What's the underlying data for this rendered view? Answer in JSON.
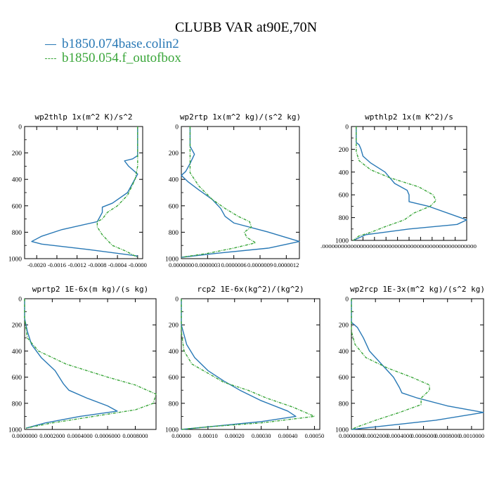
{
  "title": "CLUBB VAR at90E,70N",
  "legend": [
    {
      "label": "b1850.074base.colin2",
      "color": "#2878b5"
    },
    {
      "label": "b1850.054.f_outofbox",
      "color": "#3aa63a"
    }
  ],
  "chart_data": [
    {
      "type": "line",
      "title": "wp2thlp  1x(m^2 K)/s^2",
      "ylim": [
        1000,
        0
      ],
      "y_ticks": [
        "0",
        "200",
        "400",
        "600",
        "800",
        "1000"
      ],
      "xlim": [
        -0.00224,
        0.0001
      ],
      "x_ticks": [
        {
          "v": -0.002,
          "label": "-0.0020"
        },
        {
          "v": -0.0016,
          "label": "-0.0016"
        },
        {
          "v": -0.0012,
          "label": "-0.0012"
        },
        {
          "v": -0.0008,
          "label": "-0.0008"
        },
        {
          "v": -0.0004,
          "label": "-0.0004"
        },
        {
          "v": 0.0,
          "label": "-0.0000"
        }
      ],
      "series": [
        {
          "color": "#2878b5",
          "dashed": false,
          "points": [
            [
              0,
              0
            ],
            [
              0,
              150
            ],
            [
              0,
              220
            ],
            [
              -0.0001,
              245
            ],
            [
              -0.00026,
              260
            ],
            [
              -0.00018,
              300
            ],
            [
              0,
              360
            ],
            [
              -0.0002,
              500
            ],
            [
              -0.0005,
              580
            ],
            [
              -0.0007,
              610
            ],
            [
              -0.0007,
              650
            ],
            [
              -0.0008,
              720
            ],
            [
              -0.0015,
              780
            ],
            [
              -0.0019,
              830
            ],
            [
              -0.0021,
              870
            ],
            [
              -0.0019,
              890
            ],
            [
              -0.001,
              930
            ],
            [
              0,
              980
            ]
          ]
        },
        {
          "color": "#3aa63a",
          "dashed": true,
          "points": [
            [
              0,
              0
            ],
            [
              0,
              150
            ],
            [
              0,
              300
            ],
            [
              -5e-05,
              400
            ],
            [
              -0.0002,
              520
            ],
            [
              -0.0004,
              600
            ],
            [
              -0.0006,
              650
            ],
            [
              -0.0007,
              700
            ],
            [
              -0.0008,
              720
            ],
            [
              -0.0008,
              760
            ],
            [
              -0.0007,
              820
            ],
            [
              -0.0006,
              860
            ],
            [
              -0.0005,
              900
            ],
            [
              -0.00025,
              940
            ],
            [
              0,
              990
            ]
          ]
        }
      ]
    },
    {
      "type": "line",
      "title": "wp2rtp  1x(m^2 kg)/(s^2 kg)",
      "ylim": [
        1000,
        0
      ],
      "y_ticks": [
        "0",
        "200",
        "400",
        "600",
        "800",
        "1000"
      ],
      "xlim": [
        0,
        1.35e-05
      ],
      "x_ticks": [
        {
          "v": 0,
          "label": "0.0000000"
        },
        {
          "v": 3e-06,
          "label": "0.0000003"
        },
        {
          "v": 6e-06,
          "label": "0.0000006"
        },
        {
          "v": 9e-06,
          "label": "0.0000009"
        },
        {
          "v": 1.2e-05,
          "label": "0.0000012"
        }
      ],
      "series": [
        {
          "color": "#2878b5",
          "dashed": false,
          "points": [
            [
              1e-06,
              0
            ],
            [
              1e-06,
              150
            ],
            [
              1.5e-06,
              210
            ],
            [
              1e-06,
              280
            ],
            [
              5e-07,
              340
            ],
            [
              0,
              370
            ],
            [
              8e-07,
              420
            ],
            [
              2e-06,
              480
            ],
            [
              3.5e-06,
              550
            ],
            [
              4.5e-06,
              620
            ],
            [
              5e-06,
              680
            ],
            [
              6e-06,
              730
            ],
            [
              1e-05,
              800
            ],
            [
              1.35e-05,
              870
            ],
            [
              1e-05,
              920
            ],
            [
              4e-06,
              960
            ],
            [
              0,
              990
            ]
          ]
        },
        {
          "color": "#3aa63a",
          "dashed": true,
          "points": [
            [
              1e-06,
              0
            ],
            [
              1e-06,
              200
            ],
            [
              1e-06,
              350
            ],
            [
              2e-06,
              450
            ],
            [
              3.5e-06,
              550
            ],
            [
              5e-06,
              620
            ],
            [
              6.5e-06,
              680
            ],
            [
              7.8e-06,
              720
            ],
            [
              8e-06,
              760
            ],
            [
              7.2e-06,
              800
            ],
            [
              7.5e-06,
              840
            ],
            [
              8.5e-06,
              880
            ],
            [
              6e-06,
              920
            ],
            [
              3e-06,
              960
            ],
            [
              0,
              990
            ]
          ]
        }
      ]
    },
    {
      "type": "line",
      "title": "wpthlp2  1x(m K^2)/s",
      "ylim": [
        1000,
        0
      ],
      "y_ticks": [
        "0",
        "200",
        "400",
        "600",
        "800",
        "1000"
      ],
      "xlim": [
        0,
        1.2
      ],
      "x_tick_strip": ".0000000000000000000000000000000000000000000000000",
      "series": [
        {
          "color": "#2878b5",
          "dashed": false,
          "points": [
            [
              0.05,
              0
            ],
            [
              0.05,
              140
            ],
            [
              0.08,
              160
            ],
            [
              0.1,
              200
            ],
            [
              0.12,
              260
            ],
            [
              0.2,
              320
            ],
            [
              0.35,
              400
            ],
            [
              0.4,
              450
            ],
            [
              0.45,
              500
            ],
            [
              0.58,
              560
            ],
            [
              0.6,
              600
            ],
            [
              0.6,
              660
            ],
            [
              0.8,
              700
            ],
            [
              1.2,
              820
            ],
            [
              1.1,
              860
            ],
            [
              0.6,
              900
            ],
            [
              0.15,
              950
            ],
            [
              0.02,
              1000
            ]
          ]
        },
        {
          "color": "#3aa63a",
          "dashed": true,
          "points": [
            [
              0.05,
              0
            ],
            [
              0.05,
              220
            ],
            [
              0.08,
              300
            ],
            [
              0.2,
              380
            ],
            [
              0.4,
              450
            ],
            [
              0.7,
              530
            ],
            [
              0.85,
              600
            ],
            [
              0.88,
              650
            ],
            [
              0.82,
              700
            ],
            [
              0.65,
              760
            ],
            [
              0.55,
              820
            ],
            [
              0.35,
              880
            ],
            [
              0.2,
              930
            ],
            [
              0.08,
              960
            ],
            [
              0.02,
              1000
            ]
          ]
        }
      ]
    },
    {
      "type": "line",
      "title": "wprtp2  1E-6x(m kg)/(s kg)",
      "ylim": [
        1000,
        0
      ],
      "y_ticks": [
        "0",
        "200",
        "400",
        "600",
        "800",
        "1000"
      ],
      "xlim": [
        0,
        0.00095
      ],
      "x_ticks": [
        {
          "v": 0,
          "label": "0.0000000"
        },
        {
          "v": 0.0002,
          "label": "0.0002000"
        },
        {
          "v": 0.0004,
          "label": "0.0004000"
        },
        {
          "v": 0.0006,
          "label": "0.0006000"
        },
        {
          "v": 0.0008,
          "label": "0.0008000"
        }
      ],
      "series": [
        {
          "color": "#2878b5",
          "dashed": false,
          "points": [
            [
              0,
              0
            ],
            [
              0,
              150
            ],
            [
              2e-05,
              250
            ],
            [
              5e-05,
              350
            ],
            [
              0.00012,
              450
            ],
            [
              0.00022,
              550
            ],
            [
              0.00028,
              650
            ],
            [
              0.00032,
              700
            ],
            [
              0.00045,
              760
            ],
            [
              0.0006,
              820
            ],
            [
              0.00067,
              860
            ],
            [
              0.0004,
              900
            ],
            [
              0.00015,
              950
            ],
            [
              1e-05,
              990
            ]
          ]
        },
        {
          "color": "#3aa63a",
          "dashed": true,
          "points": [
            [
              0,
              0
            ],
            [
              0,
              150
            ],
            [
              2e-05,
              300
            ],
            [
              0.0001,
              400
            ],
            [
              0.0003,
              500
            ],
            [
              0.0006,
              600
            ],
            [
              0.0008,
              660
            ],
            [
              0.00095,
              730
            ],
            [
              0.00093,
              800
            ],
            [
              0.0008,
              850
            ],
            [
              0.0005,
              900
            ],
            [
              0.0002,
              950
            ],
            [
              1e-05,
              990
            ]
          ]
        }
      ]
    },
    {
      "type": "line",
      "title": "rcp2  1E-6x(kg^2)/(kg^2)",
      "ylim": [
        1000,
        0
      ],
      "y_ticks": [
        "0",
        "200",
        "400",
        "600",
        "800",
        "1000"
      ],
      "xlim": [
        0,
        0.00052
      ],
      "x_ticks": [
        {
          "v": 0,
          "label": "0.00000"
        },
        {
          "v": 0.0001,
          "label": "0.00010"
        },
        {
          "v": 0.0002,
          "label": "0.00020"
        },
        {
          "v": 0.0003,
          "label": "0.00030"
        },
        {
          "v": 0.0004,
          "label": "0.00040"
        },
        {
          "v": 0.0005,
          "label": "0.00050"
        }
      ],
      "series": [
        {
          "color": "#2878b5",
          "dashed": false,
          "points": [
            [
              0,
              0
            ],
            [
              0,
              200
            ],
            [
              2e-05,
              350
            ],
            [
              5e-05,
              450
            ],
            [
              0.0001,
              550
            ],
            [
              0.00016,
              630
            ],
            [
              0.00022,
              700
            ],
            [
              0.0003,
              780
            ],
            [
              0.0004,
              860
            ],
            [
              0.00043,
              900
            ],
            [
              0.0003,
              940
            ],
            [
              0.0001,
              980
            ],
            [
              0,
              1000
            ]
          ]
        },
        {
          "color": "#3aa63a",
          "dashed": true,
          "points": [
            [
              0,
              0
            ],
            [
              0,
              250
            ],
            [
              1e-05,
              400
            ],
            [
              4e-05,
              500
            ],
            [
              0.0001,
              570
            ],
            [
              0.00016,
              640
            ],
            [
              0.00025,
              700
            ],
            [
              0.00032,
              760
            ],
            [
              0.00042,
              830
            ],
            [
              0.0005,
              900
            ],
            [
              0.0003,
              950
            ],
            [
              0.0001,
              980
            ],
            [
              0,
              1000
            ]
          ]
        }
      ]
    },
    {
      "type": "line",
      "title": "wp2rcp  1E-3x(m^2 kg)/(s^2 kg)",
      "ylim": [
        1000,
        0
      ],
      "y_ticks": [
        "0",
        "200",
        "400",
        "600",
        "800",
        "1000"
      ],
      "xlim": [
        0,
        0.0011
      ],
      "x_ticks": [
        {
          "v": 0,
          "label": "0.0000000"
        },
        {
          "v": 0.0002,
          "label": "0.0002000"
        },
        {
          "v": 0.0004,
          "label": "0.0004000"
        },
        {
          "v": 0.0006,
          "label": "0.0006000"
        },
        {
          "v": 0.0008,
          "label": "0.0008000"
        },
        {
          "v": 0.001,
          "label": "0.0010000"
        }
      ],
      "series": [
        {
          "color": "#2878b5",
          "dashed": false,
          "points": [
            [
              0,
              0
            ],
            [
              0,
              180
            ],
            [
              5e-05,
              220
            ],
            [
              0.0001,
              300
            ],
            [
              0.00015,
              400
            ],
            [
              0.00025,
              500
            ],
            [
              0.00035,
              600
            ],
            [
              0.0004,
              680
            ],
            [
              0.00042,
              720
            ],
            [
              0.00055,
              760
            ],
            [
              0.0008,
              820
            ],
            [
              0.0011,
              870
            ],
            [
              0.0007,
              930
            ],
            [
              0.0002,
              980
            ],
            [
              0,
              1000
            ]
          ]
        },
        {
          "color": "#3aa63a",
          "dashed": true,
          "points": [
            [
              0,
              0
            ],
            [
              0,
              250
            ],
            [
              3e-05,
              350
            ],
            [
              0.00012,
              450
            ],
            [
              0.0003,
              530
            ],
            [
              0.0005,
              600
            ],
            [
              0.00065,
              660
            ],
            [
              0.00065,
              700
            ],
            [
              0.00058,
              760
            ],
            [
              0.00058,
              810
            ],
            [
              0.0004,
              870
            ],
            [
              0.0002,
              930
            ],
            [
              5e-05,
              980
            ],
            [
              0,
              1000
            ]
          ]
        }
      ]
    }
  ]
}
